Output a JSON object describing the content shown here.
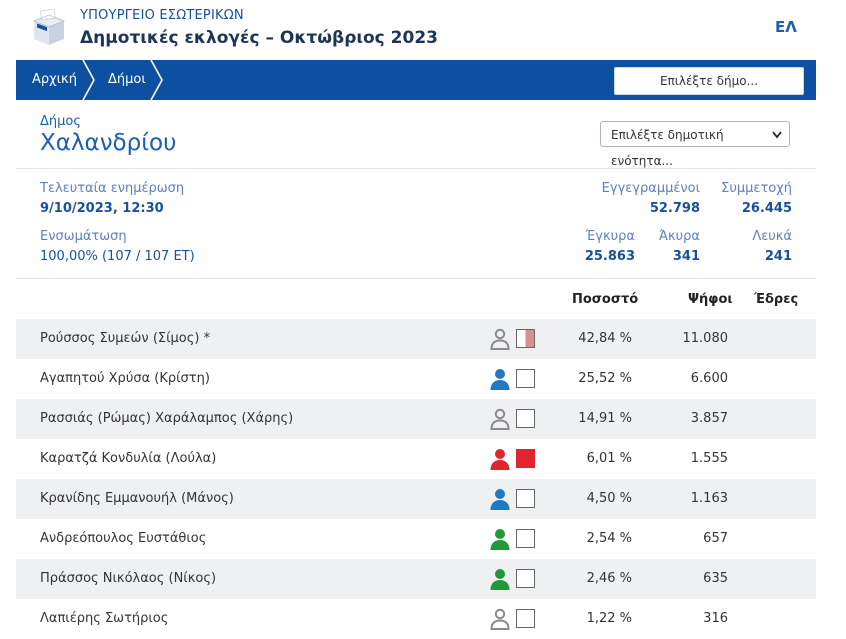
{
  "header": {
    "ministry": "ΥΠΟΥΡΓΕΙΟ ΕΣΩΤΕΡΙΚΩΝ",
    "title": "Δημοτικές εκλογές – Οκτώβριος 2023",
    "language": "ΕΛ"
  },
  "nav": {
    "home": "Αρχική",
    "municipalities": "Δήμοι",
    "select_municipality": "Επιλέξτε δήμο..."
  },
  "municipality": {
    "label": "Δήμος",
    "name": "Χαλανδρίου",
    "unit_select_value": "Επιλέξτε δημοτική ενότητα..."
  },
  "stats": {
    "last_update_label": "Τελευταία ενημέρωση",
    "last_update_value": "9/10/2023, 12:30",
    "registered_label": "Εγγεγραμμένοι",
    "registered_value": "52.798",
    "turnout_label": "Συμμετοχή",
    "turnout_value": "26.445",
    "integration_label": "Ενσωμάτωση",
    "integration_value": "100,00% (107 / 107 ΕΤ)",
    "valid_label": "Έγκυρα",
    "valid_value": "25.863",
    "invalid_label": "Άκυρα",
    "invalid_value": "341",
    "blank_label": "Λευκά",
    "blank_value": "241"
  },
  "table": {
    "headers": {
      "percentage": "Ποσοστό",
      "votes": "Ψήφοι",
      "seats": "Έδρες"
    },
    "rows": [
      {
        "name": "Ρούσσος Συμεών (Σίμος) *",
        "percentage": "42,84 %",
        "votes": "11.080",
        "icon_color": "#8a8a8a",
        "box_color": "#d98f92",
        "box_style": "half"
      },
      {
        "name": "Αγαπητού Χρύσα (Κρίστη)",
        "percentage": "25,52 %",
        "votes": "6.600",
        "icon_color": "#1f7ac4",
        "box_color": "#ffffff",
        "box_style": "empty"
      },
      {
        "name": "Ρασσιάς (Ρώμας) Χαράλαμπος (Χάρης)",
        "percentage": "14,91 %",
        "votes": "3.857",
        "icon_color": "#8a8a8a",
        "box_color": "#ffffff",
        "box_style": "empty"
      },
      {
        "name": "Καρατζά Κονδυλία (Λούλα)",
        "percentage": "6,01 %",
        "votes": "1.555",
        "icon_color": "#e0252f",
        "box_color": "#e0252f",
        "box_style": "full"
      },
      {
        "name": "Κρανίδης Εμμανουήλ (Μάνος)",
        "percentage": "4,50 %",
        "votes": "1.163",
        "icon_color": "#1f7ac4",
        "box_color": "#ffffff",
        "box_style": "empty"
      },
      {
        "name": "Ανδρεόπουλος Ευστάθιος",
        "percentage": "2,54 %",
        "votes": "657",
        "icon_color": "#1e9a3a",
        "box_color": "#ffffff",
        "box_style": "empty"
      },
      {
        "name": "Πράσσος Νικόλαος (Νίκος)",
        "percentage": "2,46 %",
        "votes": "635",
        "icon_color": "#1e9a3a",
        "box_color": "#ffffff",
        "box_style": "empty"
      },
      {
        "name": "Λαπιέρης Σωτήριος",
        "percentage": "1,22 %",
        "votes": "316",
        "icon_color": "#8a8a8a",
        "box_color": "#ffffff",
        "box_style": "empty"
      }
    ]
  }
}
